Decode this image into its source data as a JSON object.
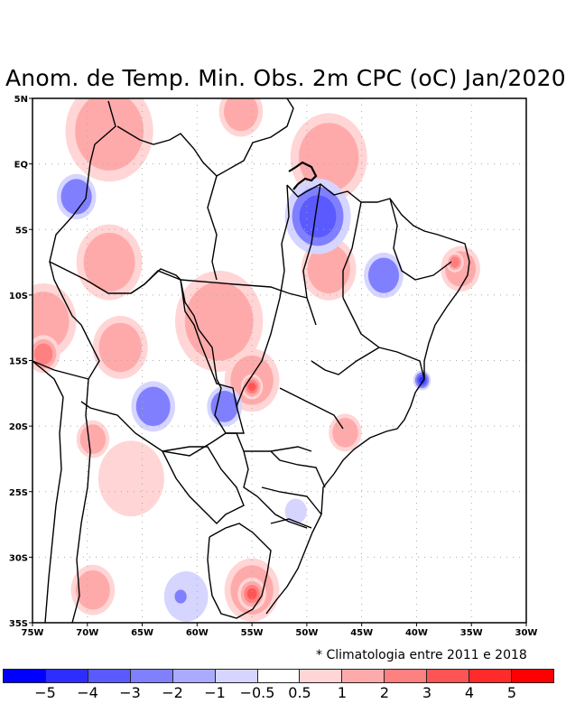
{
  "title": "Anom. de Temp. Min. Obs. 2m CPC (oC) Jan/2020",
  "note": "* Climatologia entre 2011 e 2018",
  "map": {
    "lon_range": [
      -75,
      -30
    ],
    "lat_range": [
      -35,
      5
    ],
    "y_ticks": [
      {
        "label": "5N",
        "lat": 5
      },
      {
        "label": "EQ",
        "lat": 0
      },
      {
        "label": "5S",
        "lat": -5
      },
      {
        "label": "10S",
        "lat": -10
      },
      {
        "label": "15S",
        "lat": -15
      },
      {
        "label": "20S",
        "lat": -20
      },
      {
        "label": "25S",
        "lat": -25
      },
      {
        "label": "30S",
        "lat": -30
      },
      {
        "label": "35S",
        "lat": -35
      }
    ],
    "x_ticks": [
      {
        "label": "75W",
        "lon": -75
      },
      {
        "label": "70W",
        "lon": -70
      },
      {
        "label": "65W",
        "lon": -65
      },
      {
        "label": "60W",
        "lon": -60
      },
      {
        "label": "55W",
        "lon": -55
      },
      {
        "label": "50W",
        "lon": -50
      },
      {
        "label": "45W",
        "lon": -45
      },
      {
        "label": "40W",
        "lon": -40
      },
      {
        "label": "35W",
        "lon": -35
      },
      {
        "label": "30W",
        "lon": -30
      }
    ],
    "anomalies": [
      {
        "lon": -68,
        "lat": 2.5,
        "r": 4,
        "level": 2
      },
      {
        "lon": -56,
        "lat": 4,
        "r": 2,
        "level": 2
      },
      {
        "lon": -48,
        "lat": 0.5,
        "r": 3.5,
        "level": 2
      },
      {
        "lon": -71,
        "lat": -2.5,
        "r": 1.8,
        "level": -2
      },
      {
        "lon": -49,
        "lat": -4,
        "r": 3,
        "level": -3
      },
      {
        "lon": -48,
        "lat": -8,
        "r": 2.5,
        "level": 2
      },
      {
        "lon": -68,
        "lat": -7.5,
        "r": 3,
        "level": 2
      },
      {
        "lon": -74,
        "lat": -12,
        "r": 3,
        "level": 2
      },
      {
        "lon": -74,
        "lat": -14.5,
        "r": 1.5,
        "level": 3
      },
      {
        "lon": -67,
        "lat": -14,
        "r": 2.5,
        "level": 2
      },
      {
        "lon": -58,
        "lat": -12,
        "r": 4,
        "level": 2
      },
      {
        "lon": -55,
        "lat": -16.5,
        "r": 2.5,
        "level": 2
      },
      {
        "lon": -55,
        "lat": -17,
        "r": 1,
        "level": 4
      },
      {
        "lon": -64,
        "lat": -18.5,
        "r": 2,
        "level": -2
      },
      {
        "lon": -57.5,
        "lat": -18.5,
        "r": 1.6,
        "level": -2
      },
      {
        "lon": -43,
        "lat": -8.5,
        "r": 1.8,
        "level": -2
      },
      {
        "lon": -36,
        "lat": -8,
        "r": 1.8,
        "level": 2
      },
      {
        "lon": -36.5,
        "lat": -7.5,
        "r": 0.8,
        "level": 3
      },
      {
        "lon": -39.5,
        "lat": -16.5,
        "r": 0.8,
        "level": -4
      },
      {
        "lon": -46.5,
        "lat": -20.5,
        "r": 1.5,
        "level": 2
      },
      {
        "lon": -69.5,
        "lat": -21,
        "r": 1.5,
        "level": 2
      },
      {
        "lon": -66,
        "lat": -24,
        "r": 3,
        "level": 1
      },
      {
        "lon": -69.5,
        "lat": -32.5,
        "r": 2,
        "level": 2
      },
      {
        "lon": -55,
        "lat": -32.5,
        "r": 2.5,
        "level": 2
      },
      {
        "lon": -55,
        "lat": -32.8,
        "r": 1.3,
        "level": 4
      },
      {
        "lon": -61,
        "lat": -33,
        "r": 2,
        "level": -1
      },
      {
        "lon": -61.5,
        "lat": -33,
        "r": 0.7,
        "level": -2
      },
      {
        "lon": -51,
        "lat": -26.5,
        "r": 1,
        "level": -1
      }
    ]
  },
  "colorbar": {
    "colors": [
      "#0000ff",
      "#2d2dff",
      "#5a5aff",
      "#8080ff",
      "#aaaaff",
      "#d5d5ff",
      "#ffffff",
      "#ffd5d5",
      "#ffaaaa",
      "#ff8080",
      "#ff5454",
      "#ff2a2a",
      "#ff0000"
    ],
    "labels": [
      "−5",
      "−4",
      "−3",
      "−2",
      "−1",
      "−0.5",
      "0.5",
      "1",
      "2",
      "3",
      "4",
      "5"
    ],
    "level_colors": {
      "-4": "#2d2dff",
      "-3": "#5a5aff",
      "-2": "#8080ff",
      "-1": "#d5d5ff",
      "1": "#ffd5d5",
      "2": "#ffaaaa",
      "3": "#ff8080",
      "4": "#ff5454"
    }
  }
}
